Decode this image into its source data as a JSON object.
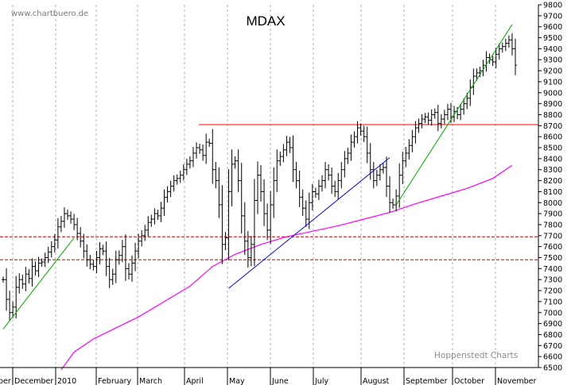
{
  "chart_data": {
    "type": "ohlc",
    "title": "MDAX",
    "watermark": "www.chartbuero.de",
    "credit": "Hoppenstedt Charts",
    "ylim": [
      6500,
      9800
    ],
    "y_ticks": [
      6500,
      6600,
      6700,
      6800,
      6900,
      7000,
      7100,
      7200,
      7300,
      7400,
      7500,
      7600,
      7700,
      7800,
      7900,
      8000,
      8100,
      8200,
      8300,
      8400,
      8500,
      8600,
      8700,
      8800,
      8900,
      9000,
      9100,
      9200,
      9300,
      9400,
      9500,
      9600,
      9700,
      9800
    ],
    "x_labels": [
      "ber",
      "December",
      "2010",
      "February",
      "March",
      "April",
      "May",
      "June",
      "July",
      "August",
      "September",
      "October",
      "November"
    ],
    "grid": true,
    "colors": {
      "bars": "#000000",
      "moving_average": "#ff00ff",
      "resistance": "#ff0000",
      "support_dashed": "#cc0000",
      "uptrend_green": "#00aa00",
      "uptrend_blue": "#0000ee",
      "grid": "#b0b0b0"
    },
    "horizontal_lines": [
      {
        "value": 8710,
        "style": "solid"
      },
      {
        "value": 7690,
        "style": "dashed"
      },
      {
        "value": 7480,
        "style": "dashed"
      }
    ],
    "trend_lines": [
      {
        "color": "green",
        "from": [
          0,
          6850
        ],
        "to": [
          22,
          7680
        ]
      },
      {
        "color": "blue",
        "from": [
          70,
          7220
        ],
        "to": [
          120,
          8410
        ]
      },
      {
        "color": "green",
        "from": [
          122,
          7980
        ],
        "to": [
          158,
          9620
        ]
      }
    ],
    "moving_average": [
      {
        "i": 18,
        "v": 6480
      },
      {
        "i": 22,
        "v": 6640
      },
      {
        "i": 28,
        "v": 6760
      },
      {
        "i": 35,
        "v": 6860
      },
      {
        "i": 42,
        "v": 6960
      },
      {
        "i": 50,
        "v": 7100
      },
      {
        "i": 58,
        "v": 7240
      },
      {
        "i": 65,
        "v": 7420
      },
      {
        "i": 72,
        "v": 7530
      },
      {
        "i": 80,
        "v": 7620
      },
      {
        "i": 88,
        "v": 7690
      },
      {
        "i": 96,
        "v": 7740
      },
      {
        "i": 104,
        "v": 7790
      },
      {
        "i": 112,
        "v": 7850
      },
      {
        "i": 120,
        "v": 7910
      },
      {
        "i": 128,
        "v": 7990
      },
      {
        "i": 136,
        "v": 8060
      },
      {
        "i": 144,
        "v": 8130
      },
      {
        "i": 152,
        "v": 8220
      },
      {
        "i": 158,
        "v": 8340
      }
    ],
    "closes": [
      7300,
      7120,
      7000,
      7050,
      7230,
      7300,
      7260,
      7350,
      7310,
      7420,
      7380,
      7450,
      7460,
      7500,
      7550,
      7600,
      7660,
      7780,
      7830,
      7900,
      7880,
      7850,
      7800,
      7720,
      7650,
      7560,
      7480,
      7440,
      7420,
      7500,
      7580,
      7560,
      7420,
      7300,
      7350,
      7480,
      7520,
      7600,
      7400,
      7350,
      7450,
      7560,
      7650,
      7700,
      7750,
      7820,
      7850,
      7900,
      7880,
      7950,
      8050,
      8100,
      8150,
      8200,
      8220,
      8250,
      8300,
      8350,
      8380,
      8450,
      8500,
      8480,
      8430,
      8550,
      8540,
      8300,
      8200,
      7980,
      7620,
      7680,
      8100,
      8350,
      8380,
      8200,
      7880,
      7650,
      7500,
      7620,
      8020,
      8250,
      8100,
      7900,
      7750,
      7980,
      8200,
      8380,
      8420,
      8480,
      8550,
      8500,
      8300,
      8200,
      8050,
      7950,
      7850,
      8000,
      8100,
      8080,
      8150,
      8200,
      8300,
      8250,
      8150,
      8100,
      8200,
      8300,
      8400,
      8450,
      8550,
      8600,
      8680,
      8650,
      8600,
      8450,
      8300,
      8200,
      8250,
      8300,
      8320,
      8150,
      8000,
      7980,
      8060,
      8250,
      8380,
      8450,
      8520,
      8600,
      8680,
      8720,
      8760,
      8780,
      8750,
      8800,
      8820,
      8720,
      8760,
      8800,
      8850,
      8780,
      8830,
      8800,
      8850,
      8900,
      8950,
      9050,
      9150,
      9180,
      9200,
      9250,
      9320,
      9300,
      9280,
      9350,
      9400,
      9420,
      9450,
      9480,
      9400,
      9250
    ]
  }
}
